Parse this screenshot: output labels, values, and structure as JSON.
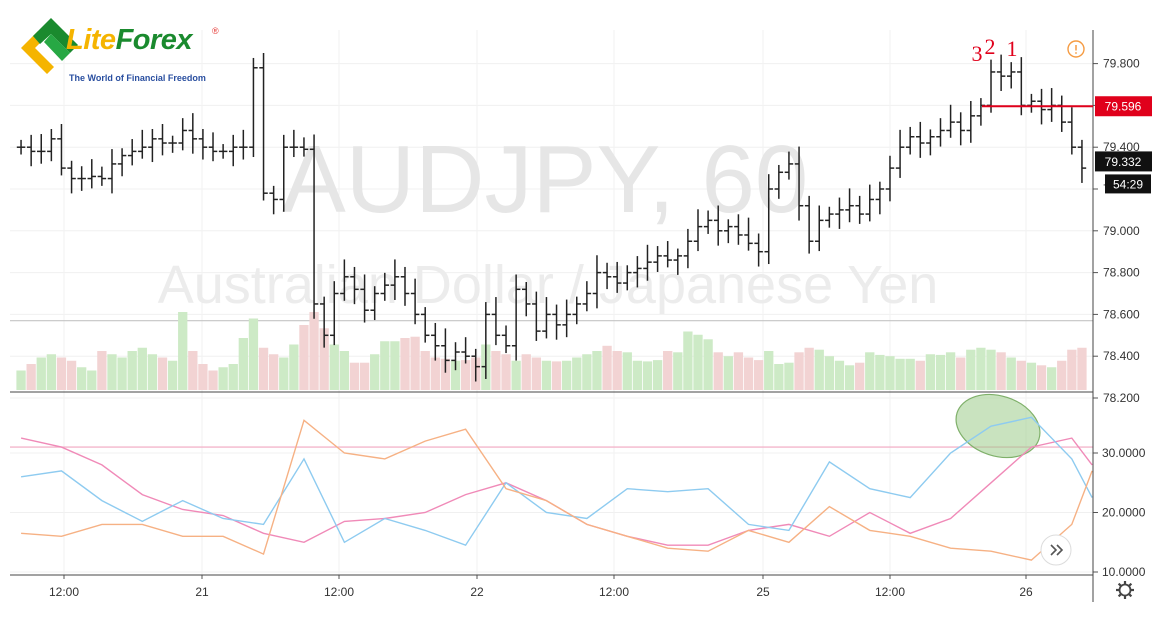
{
  "logo": {
    "part1": "Lite",
    "part2": "Forex",
    "reg": "®",
    "tagline": "The World of Financial Freedom"
  },
  "watermark": {
    "symbol": "AUDJPY, 60",
    "description": "Australian Dollar / Japanese Yen"
  },
  "chart_data": [
    {
      "type": "ohlc",
      "interval": "60",
      "ylim": [
        78.2,
        79.9
      ],
      "y_ticks": [
        "79.800",
        "79.600",
        "79.400",
        "79.200",
        "79.000",
        "78.800",
        "78.600",
        "78.400",
        "78.200"
      ],
      "x_tick_labels": [
        "12:00",
        "21",
        "12:00",
        "22",
        "12:00",
        "25",
        "12:00",
        "26"
      ],
      "bar_color": "#222222",
      "close": [
        79.4,
        79.38,
        79.38,
        79.44,
        79.3,
        79.25,
        79.25,
        79.26,
        79.25,
        79.32,
        79.36,
        79.38,
        79.4,
        79.44,
        79.42,
        79.42,
        79.48,
        79.44,
        79.4,
        79.38,
        79.38,
        79.4,
        79.4,
        79.78,
        79.18,
        79.15,
        79.4,
        79.4,
        79.39,
        78.65,
        78.5,
        78.7,
        78.78,
        78.72,
        78.62,
        78.7,
        78.74,
        78.78,
        78.7,
        78.6,
        78.5,
        78.45,
        78.38,
        78.42,
        78.4,
        78.35,
        78.6,
        78.5,
        78.45,
        78.72,
        78.65,
        78.52,
        78.6,
        78.55,
        78.6,
        78.65,
        78.7,
        78.8,
        78.78,
        78.75,
        78.8,
        78.82,
        78.85,
        78.88,
        78.86,
        78.88,
        78.95,
        79.02,
        79.05,
        79.0,
        79.02,
        78.98,
        78.94,
        78.9,
        79.2,
        79.28,
        79.32,
        79.12,
        78.95,
        79.05,
        79.08,
        79.1,
        79.12,
        79.08,
        79.15,
        79.2,
        79.3,
        79.4,
        79.45,
        79.42,
        79.45,
        79.48,
        79.52,
        79.48,
        79.55,
        79.6,
        79.76,
        79.74,
        79.76,
        79.6,
        79.62,
        79.58,
        79.6,
        79.52,
        79.4,
        79.3
      ],
      "current_price": "79.332",
      "countdown": "54:29",
      "level_label": "79.596",
      "level": 79.596,
      "horizontal_line": 78.57,
      "wave_labels": [
        "3",
        "2",
        "1"
      ],
      "volume": {
        "up_color": "#cdeac6",
        "down_color": "#f2d3d3",
        "values": [
          0.3,
          0.4,
          0.5,
          0.55,
          0.5,
          0.45,
          0.35,
          0.3,
          0.6,
          0.55,
          0.5,
          0.6,
          0.65,
          0.55,
          0.5,
          0.45,
          1.2,
          0.6,
          0.4,
          0.3,
          0.35,
          0.4,
          0.8,
          1.1,
          0.65,
          0.55,
          0.5,
          0.7,
          1.0,
          1.2,
          0.95,
          0.7,
          0.6,
          0.42,
          0.42,
          0.55,
          0.75,
          0.75,
          0.8,
          0.82,
          0.6,
          0.5,
          0.48,
          0.45,
          0.46,
          0.5,
          0.7,
          0.6,
          0.55,
          0.45,
          0.55,
          0.5,
          0.45,
          0.44,
          0.45,
          0.5,
          0.55,
          0.6,
          0.68,
          0.6,
          0.58,
          0.45,
          0.44,
          0.46,
          0.6,
          0.58,
          0.9,
          0.85,
          0.78,
          0.58,
          0.52,
          0.58,
          0.5,
          0.46,
          0.6,
          0.4,
          0.42,
          0.58,
          0.65,
          0.62,
          0.52,
          0.45,
          0.38,
          0.42,
          0.58,
          0.54,
          0.52,
          0.48,
          0.48,
          0.45,
          0.55,
          0.54,
          0.58,
          0.5,
          0.62,
          0.65,
          0.62,
          0.58,
          0.5,
          0.45,
          0.42,
          0.38,
          0.35,
          0.45,
          0.62,
          0.65
        ]
      }
    },
    {
      "type": "line",
      "indicator": "ADX / DMI",
      "ylim": [
        10.0,
        38.0
      ],
      "y_ticks": [
        "30.0000",
        "20.0000",
        "10.0000"
      ],
      "horizontal_line": 31.0,
      "x": [
        0,
        4,
        8,
        12,
        16,
        20,
        24,
        28,
        32,
        36,
        40,
        44,
        48,
        52,
        56,
        60,
        64,
        68,
        72,
        76,
        80,
        84,
        88,
        92,
        96,
        100,
        104,
        106
      ],
      "series": [
        {
          "color": "#f08ab8",
          "values": [
            32.5,
            31,
            28,
            23,
            20.5,
            19.5,
            16.5,
            15,
            18.5,
            19,
            20,
            23,
            25,
            22,
            18,
            16,
            14.5,
            14.5,
            17,
            18,
            16,
            20,
            16.5,
            19,
            25,
            31,
            32.5,
            28
          ]
        },
        {
          "color": "#8ecbf0",
          "values": [
            26,
            27,
            22,
            18.5,
            22,
            19,
            18,
            29,
            15,
            19,
            17,
            14.5,
            25,
            20,
            19,
            24,
            23.5,
            24,
            18,
            17,
            28.5,
            24,
            22.5,
            30,
            34.5,
            36,
            29,
            22.5
          ]
        },
        {
          "color": "#f6b184",
          "values": [
            16.5,
            16,
            18,
            18,
            16,
            16,
            13,
            35.5,
            30,
            29,
            32,
            34,
            24,
            22,
            18,
            16,
            14,
            13.5,
            17,
            15,
            21,
            17,
            16,
            14,
            13.5,
            12,
            18,
            27
          ]
        }
      ]
    }
  ]
}
